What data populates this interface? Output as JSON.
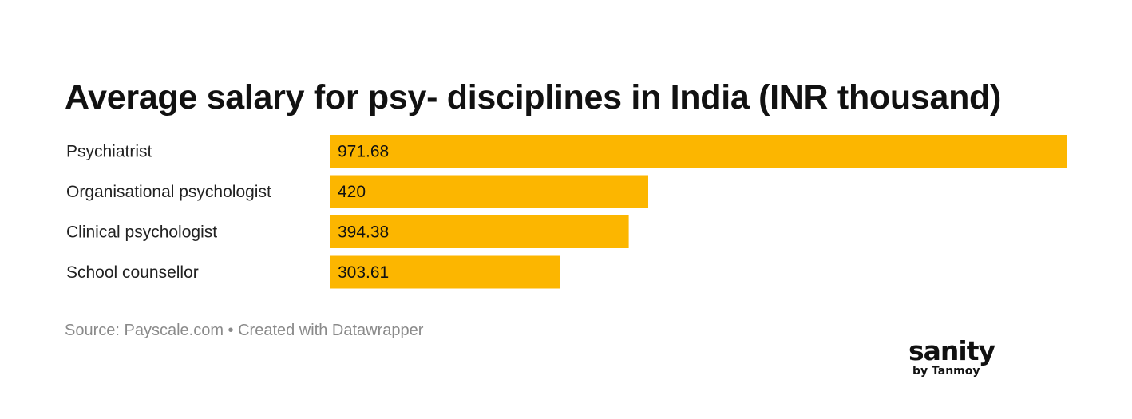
{
  "chart_data": {
    "type": "bar",
    "orientation": "horizontal",
    "title": "Average salary for psy- disciplines in India (INR thousand)",
    "categories": [
      "Psychiatrist",
      "Organisational psychologist",
      "Clinical psychologist",
      "School counsellor"
    ],
    "values": [
      971.68,
      420,
      394.38,
      303.61
    ],
    "value_labels": [
      "971.68",
      "420",
      "394.38",
      "303.61"
    ],
    "xlim": [
      0,
      971.68
    ],
    "grid": false,
    "bar_color": "#fcb600"
  },
  "source": "Source: Payscale.com • Created with Datawrapper",
  "logo": {
    "name": "sanity",
    "byline": "by Tanmoy"
  },
  "colors": {
    "bar": "#fcb600",
    "text": "#111111",
    "label_text": "#222222",
    "source_text": "#8a8a8a"
  }
}
